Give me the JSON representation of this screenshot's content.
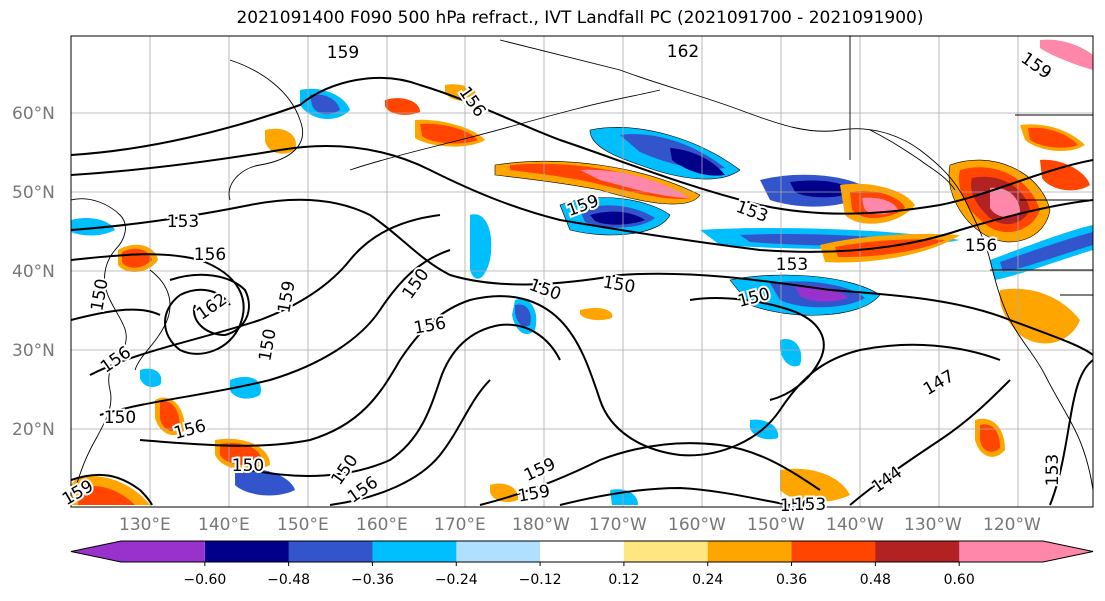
{
  "title": "2021091400 F090 500 hPa refract., IVT Landfall PC (2021091700 - 2021091900)",
  "lat_labels": [
    "60°N",
    "50°N",
    "40°N",
    "30°N",
    "20°N"
  ],
  "lon_labels": [
    "130°E",
    "140°E",
    "150°E",
    "160°E",
    "170°E",
    "180°W",
    "170°W",
    "160°W",
    "150°W",
    "140°W",
    "130°W",
    "120°W"
  ],
  "contour_labels": [
    "159",
    "162",
    "159",
    "156",
    "153",
    "159",
    "153",
    "156",
    "156",
    "162",
    "159",
    "156",
    "150",
    "150",
    "156",
    "150",
    "150",
    "153",
    "150",
    "150",
    "150",
    "150",
    "156",
    "150",
    "156",
    "159",
    "159",
    "159",
    "156",
    "153",
    "144",
    "147",
    "153"
  ],
  "colorbar": {
    "ticks": [
      "−0.60",
      "−0.48",
      "−0.36",
      "−0.24",
      "−0.12",
      "0.12",
      "0.24",
      "0.36",
      "0.48",
      "0.60"
    ],
    "colors": [
      "#9932cc",
      "#00008b",
      "#3355cc",
      "#00bfff",
      "#b0e0ff",
      "#ffffff",
      "#ffe680",
      "#ffa500",
      "#ff4500",
      "#b22222",
      "#ff88aa"
    ]
  },
  "palette": {
    "land_line": "#000000",
    "grid": "#aaaaaa",
    "contour": "#000000"
  }
}
